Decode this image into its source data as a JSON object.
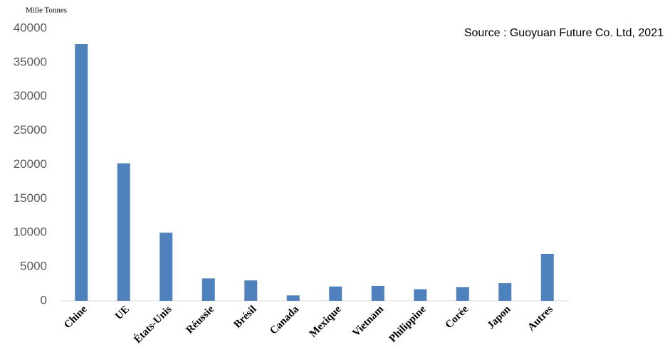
{
  "chart_data": {
    "type": "bar",
    "unit_label": "Mille Tonnes",
    "source": "Source : Guoyuan Future Co. Ltd, 2021",
    "categories": [
      "Chine",
      "UE",
      "États-Unis",
      "Réussie",
      "Brésil",
      "Canada",
      "Mexique",
      "Vietnam",
      "Philippine",
      "Corée",
      "Japon",
      "Autres"
    ],
    "values": [
      37700,
      20200,
      10000,
      3300,
      3000,
      800,
      2100,
      2200,
      1700,
      2000,
      2600,
      6900
    ],
    "color": "#4f81bd",
    "ylim": [
      0,
      40000
    ],
    "yticks": [
      0,
      5000,
      10000,
      15000,
      20000,
      25000,
      30000,
      35000,
      40000
    ],
    "grid": false
  }
}
